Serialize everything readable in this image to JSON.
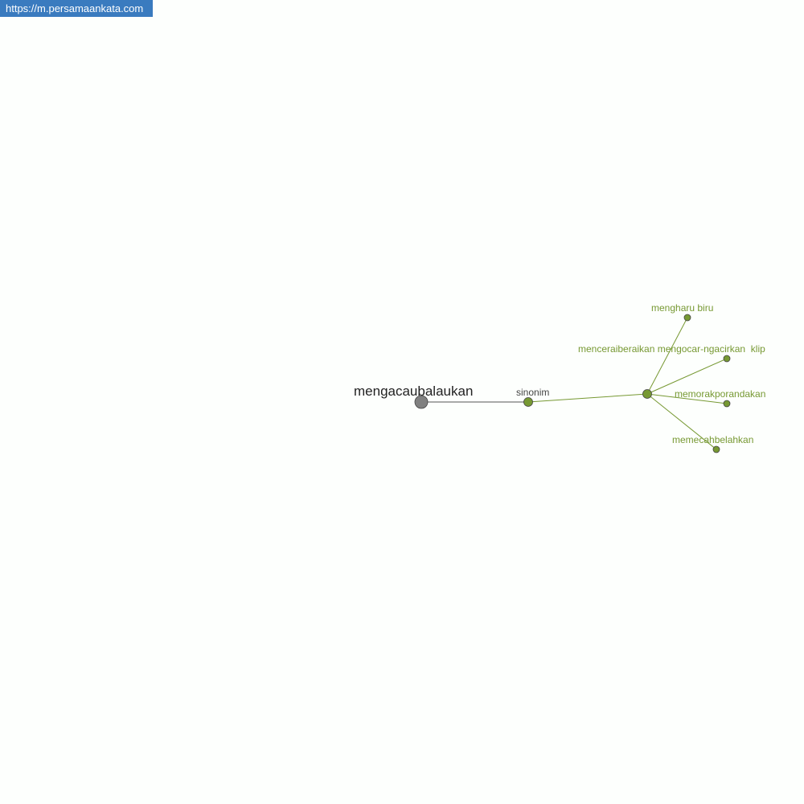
{
  "site_badge": "https://m.persamaankata.com",
  "colors": {
    "accent": "#779933",
    "root": "#808080",
    "badge": "#3a7bbf",
    "edge": "#779933"
  },
  "graph": {
    "root": "mengacaubalaukan",
    "relation": "sinonim",
    "words": [
      "mengharu biru",
      "menceraiberaikan mengocar-ngacirkan  klip",
      "memorakporandakan",
      "memecahbelahkan"
    ]
  }
}
